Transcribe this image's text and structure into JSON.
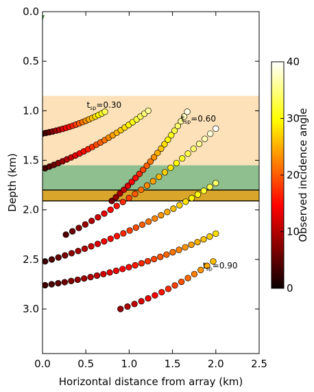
{
  "chart_data": {
    "type": "scatter",
    "xlabel": "Horizontal distance from array (km)",
    "ylabel": "Depth (km)",
    "xlim": [
      0.0,
      2.5
    ],
    "ylim": [
      3.45,
      0.0
    ],
    "y_inverted": true,
    "x_ticks": [
      "0.0",
      "0.5",
      "1.0",
      "1.5",
      "2.0",
      "2.5"
    ],
    "y_ticks": [
      "0.0",
      "0.5",
      "1.0",
      "1.5",
      "2.0",
      "2.5",
      "3.0"
    ],
    "colorbar": {
      "label": "Observed incidence angle",
      "min": 0,
      "max": 40,
      "ticks": [
        "0",
        "10",
        "20",
        "30",
        "40"
      ],
      "colormap": "hot"
    },
    "bands": [
      {
        "ymin": 0.85,
        "ymax": 1.55,
        "color": "#fde2b9"
      },
      {
        "ymin": 1.55,
        "ymax": 1.8,
        "color": "#8fbf8f"
      },
      {
        "ymin": 1.8,
        "ymax": 1.91,
        "color": "#d9a52b"
      }
    ],
    "hlines": [
      1.8,
      1.91
    ],
    "source_marker": {
      "x": 0.0,
      "y": 0.07,
      "color": "#2e7d32"
    },
    "annotations": [
      {
        "base": "t",
        "sub": "sp",
        "text": "=0.30",
        "x": 0.51,
        "y": 0.97
      },
      {
        "base": "t",
        "sub": "sp",
        "text": "=0.60",
        "x": 1.6,
        "y": 1.11
      },
      {
        "base": "t",
        "sub": "sp",
        "text": "=0.90",
        "x": 1.85,
        "y": 2.59
      }
    ],
    "series": [
      {
        "x0": 0.0,
        "y0": 1.23,
        "x1": 0.72,
        "y1": 1.01,
        "n": 20,
        "c0": 2,
        "c1": 33
      },
      {
        "x0": 0.03,
        "y0": 1.58,
        "x1": 1.22,
        "y1": 1.0,
        "n": 26,
        "c0": 3,
        "c1": 36
      },
      {
        "x0": 0.8,
        "y0": 1.91,
        "x1": 1.67,
        "y1": 1.01,
        "n": 22,
        "c0": 6,
        "c1": 39
      },
      {
        "x0": 0.27,
        "y0": 2.25,
        "x1": 2.0,
        "y1": 1.18,
        "n": 26,
        "c0": 4,
        "c1": 40
      },
      {
        "x0": 0.03,
        "y0": 2.52,
        "x1": 2.0,
        "y1": 1.73,
        "n": 28,
        "c0": 3,
        "c1": 34
      },
      {
        "x0": 0.03,
        "y0": 2.76,
        "x1": 2.0,
        "y1": 2.24,
        "n": 28,
        "c0": 3,
        "c1": 28
      },
      {
        "x0": 0.9,
        "y0": 3.0,
        "x1": 1.97,
        "y1": 2.52,
        "n": 15,
        "c0": 8,
        "c1": 26
      }
    ]
  }
}
